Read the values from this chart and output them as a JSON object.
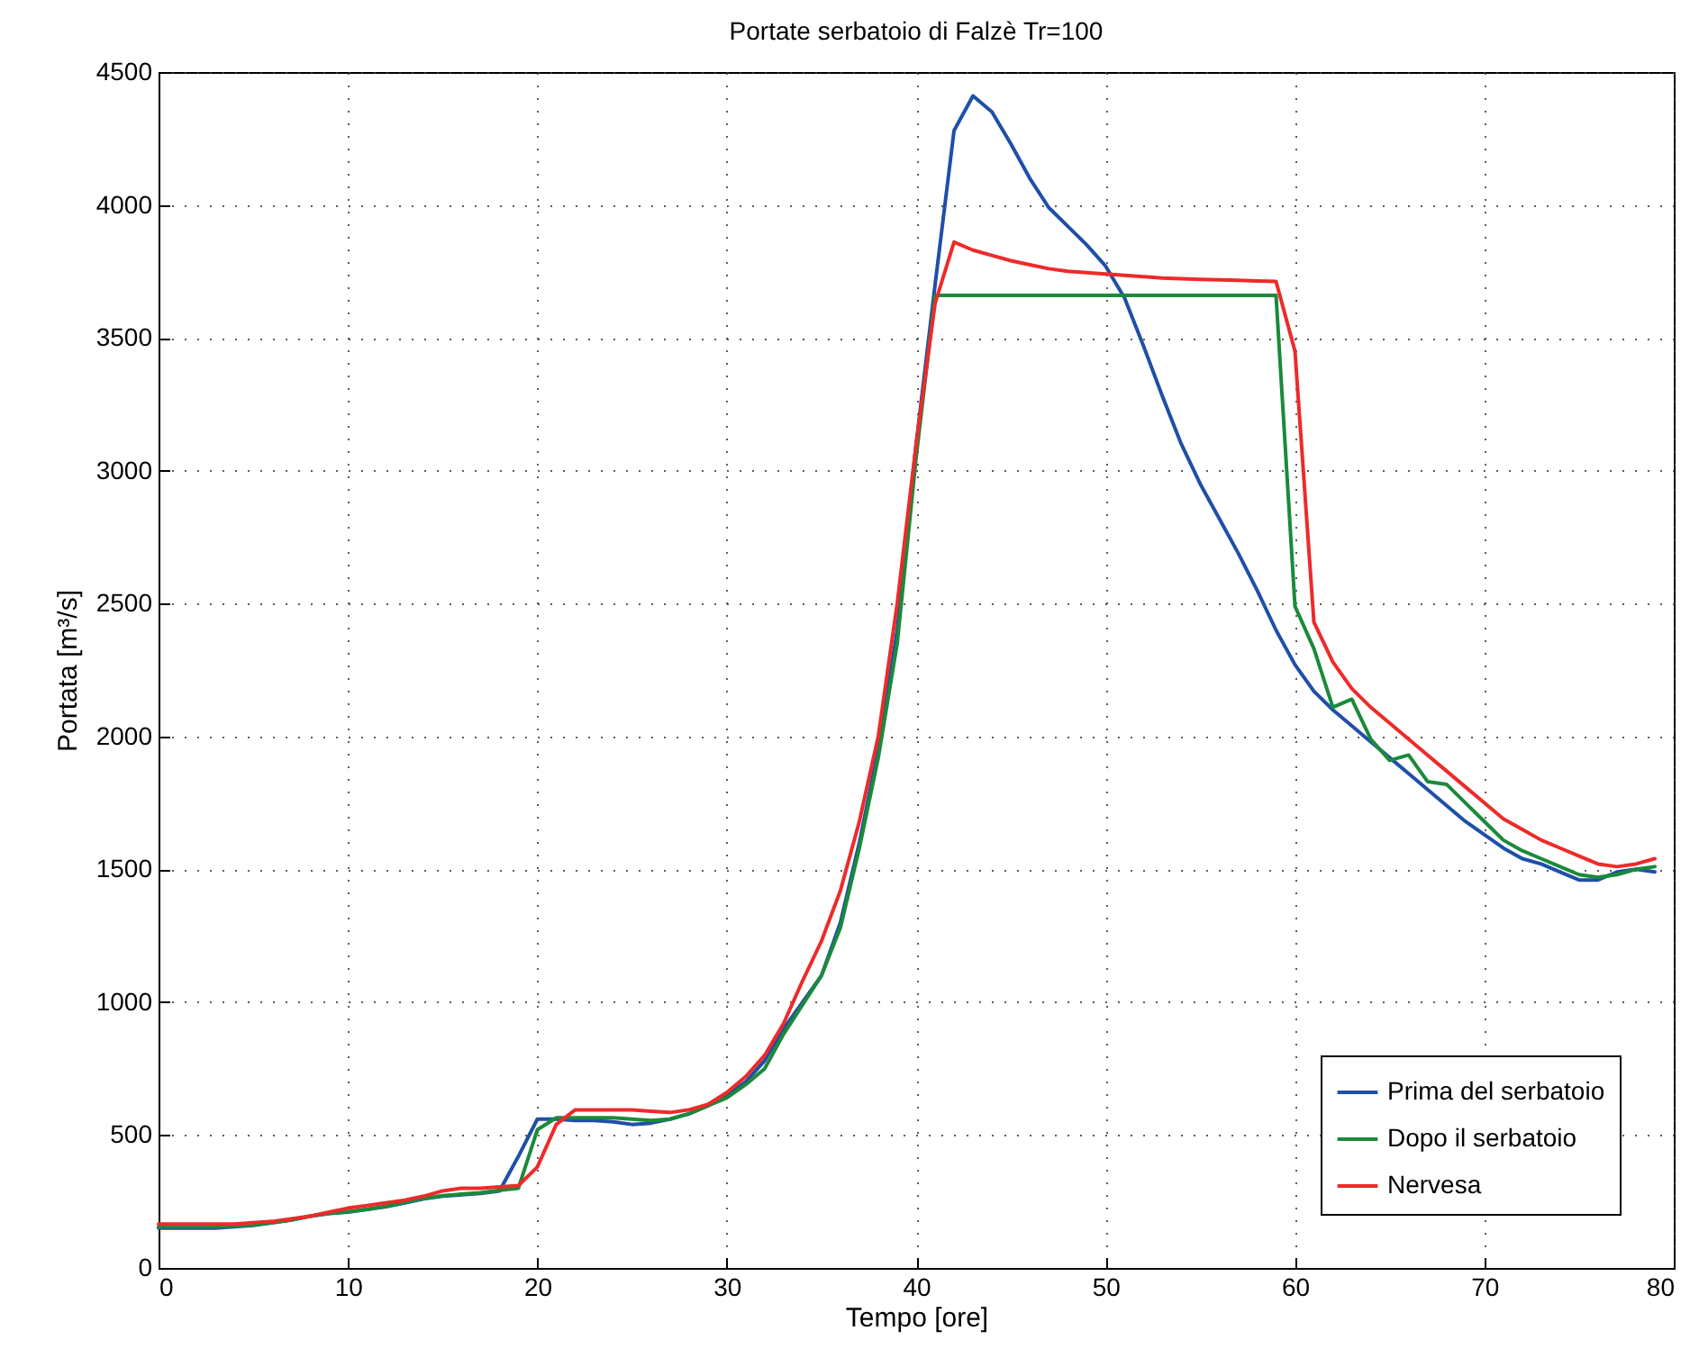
{
  "chart_data": {
    "type": "line",
    "title": "Portate serbatoio di Falzè Tr=100",
    "xlabel": "Tempo [ore]",
    "ylabel": "Portata [m³/s]",
    "x": [
      0,
      1,
      2,
      3,
      4,
      5,
      6,
      7,
      8,
      9,
      10,
      11,
      12,
      13,
      14,
      15,
      16,
      17,
      18,
      19,
      20,
      21,
      22,
      23,
      24,
      25,
      26,
      27,
      28,
      29,
      30,
      31,
      32,
      33,
      34,
      35,
      36,
      37,
      38,
      39,
      40,
      41,
      42,
      43,
      44,
      45,
      46,
      47,
      48,
      49,
      50,
      51,
      52,
      53,
      54,
      55,
      56,
      57,
      58,
      59,
      60,
      61,
      62,
      63,
      64,
      65,
      66,
      67,
      68,
      69,
      70,
      71,
      72,
      73,
      74,
      75,
      76,
      77,
      78,
      79
    ],
    "series": [
      {
        "name": "Prima del serbatoio",
        "color": "#1f4fa8",
        "values": [
          150,
          150,
          150,
          150,
          155,
          160,
          170,
          180,
          195,
          205,
          210,
          220,
          230,
          245,
          260,
          270,
          275,
          280,
          290,
          420,
          560,
          560,
          555,
          555,
          550,
          540,
          545,
          560,
          580,
          610,
          650,
          700,
          780,
          900,
          1000,
          1100,
          1300,
          1600,
          1950,
          2400,
          3100,
          3700,
          4280,
          4410,
          4350,
          4230,
          4100,
          3990,
          3920,
          3850,
          3770,
          3650,
          3470,
          3280,
          3100,
          2950,
          2820,
          2690,
          2550,
          2400,
          2270,
          2170,
          2100,
          2040,
          1980,
          1920,
          1860,
          1800,
          1740,
          1680,
          1630,
          1580,
          1540,
          1520,
          1490,
          1460,
          1460,
          1490,
          1500,
          1490
        ]
      },
      {
        "name": "Dopo il serbatoio",
        "color": "#1a8a3a",
        "values": [
          155,
          155,
          155,
          155,
          158,
          162,
          170,
          180,
          195,
          205,
          212,
          220,
          232,
          247,
          262,
          272,
          278,
          283,
          292,
          300,
          520,
          565,
          565,
          565,
          565,
          560,
          555,
          560,
          580,
          610,
          640,
          690,
          750,
          880,
          990,
          1100,
          1280,
          1580,
          1920,
          2350,
          3050,
          3660,
          3660,
          3660,
          3660,
          3660,
          3660,
          3660,
          3660,
          3660,
          3660,
          3660,
          3660,
          3660,
          3660,
          3660,
          3660,
          3660,
          3660,
          3660,
          2490,
          2330,
          2110,
          2140,
          1990,
          1910,
          1930,
          1830,
          1820,
          1750,
          1680,
          1610,
          1570,
          1540,
          1510,
          1480,
          1470,
          1480,
          1500,
          1510
        ]
      },
      {
        "name": "Nervesa",
        "color": "#ee2a2a",
        "values": [
          165,
          165,
          165,
          165,
          165,
          170,
          175,
          185,
          195,
          210,
          225,
          235,
          245,
          255,
          270,
          290,
          300,
          300,
          305,
          310,
          380,
          540,
          595,
          595,
          595,
          595,
          590,
          585,
          595,
          615,
          660,
          720,
          800,
          920,
          1080,
          1230,
          1420,
          1680,
          2000,
          2500,
          3100,
          3630,
          3860,
          3830,
          3810,
          3790,
          3775,
          3760,
          3750,
          3745,
          3740,
          3735,
          3730,
          3725,
          3722,
          3720,
          3718,
          3716,
          3714,
          3712,
          3450,
          2430,
          2280,
          2180,
          2110,
          2050,
          1990,
          1930,
          1870,
          1810,
          1750,
          1690,
          1650,
          1610,
          1580,
          1550,
          1520,
          1510,
          1520,
          1540
        ]
      }
    ],
    "xlim": [
      0,
      80
    ],
    "xticks": [
      0,
      10,
      20,
      30,
      40,
      50,
      60,
      70,
      80
    ],
    "ylim": [
      0,
      4500
    ],
    "yticks": [
      0,
      500,
      1000,
      1500,
      2000,
      2500,
      3000,
      3500,
      4000,
      4500
    ],
    "grid": true,
    "legend": "bottom right",
    "line_style": "solid"
  }
}
